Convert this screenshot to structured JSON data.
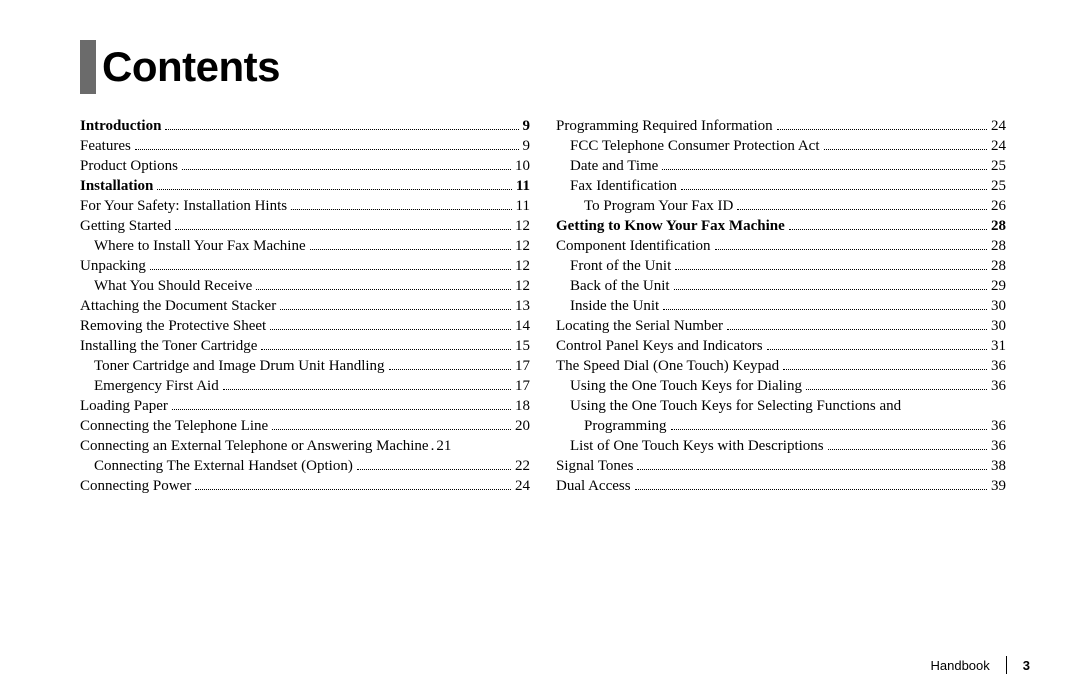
{
  "title": "Contents",
  "footer": {
    "label": "Handbook",
    "page": "3"
  },
  "columns": {
    "left": [
      {
        "label": "Introduction",
        "page": "9",
        "section": true,
        "indent": 0
      },
      {
        "label": "Features",
        "page": "9",
        "indent": 0
      },
      {
        "label": "Product Options",
        "page": "10",
        "indent": 0
      },
      {
        "label": "Installation",
        "page": "11",
        "section": true,
        "indent": 0
      },
      {
        "label": "For Your Safety: Installation Hints",
        "page": "11",
        "indent": 0
      },
      {
        "label": "Getting Started",
        "page": "12",
        "indent": 0
      },
      {
        "label": "Where to Install Your Fax Machine",
        "page": "12",
        "indent": 1
      },
      {
        "label": "Unpacking",
        "page": "12",
        "indent": 0
      },
      {
        "label": "What You Should Receive",
        "page": "12",
        "indent": 1
      },
      {
        "label": "Attaching the Document Stacker",
        "page": "13",
        "indent": 0
      },
      {
        "label": "Removing the Protective Sheet",
        "page": "14",
        "indent": 0
      },
      {
        "label": "Installing the Toner Cartridge",
        "page": "15",
        "indent": 0
      },
      {
        "label": "Toner Cartridge and Image Drum Unit Handling",
        "page": "17",
        "indent": 1
      },
      {
        "label": "Emergency First Aid",
        "page": "17",
        "indent": 1
      },
      {
        "label": "Loading Paper",
        "page": "18",
        "indent": 0
      },
      {
        "label": "Connecting the Telephone Line",
        "page": "20",
        "indent": 0
      },
      {
        "label": "Connecting an External Telephone or Answering Machine",
        "page": "21",
        "nodots": true,
        "indent": 0
      },
      {
        "label": "Connecting The External Handset (Option)",
        "page": "22",
        "indent": 1
      },
      {
        "label": "Connecting Power",
        "page": "24",
        "indent": 0
      }
    ],
    "right": [
      {
        "label": "Programming Required Information",
        "page": "24",
        "indent": 0
      },
      {
        "label": "FCC Telephone Consumer Protection Act",
        "page": "24",
        "indent": 1
      },
      {
        "label": "Date and Time",
        "page": "25",
        "indent": 1
      },
      {
        "label": "Fax Identification",
        "page": "25",
        "indent": 1
      },
      {
        "label": "To Program Your Fax ID",
        "page": "26",
        "indent": 2
      },
      {
        "label": "Getting to Know Your Fax Machine",
        "page": "28",
        "section": true,
        "indent": 0
      },
      {
        "label": "Component Identification",
        "page": "28",
        "indent": 0
      },
      {
        "label": "Front of the Unit",
        "page": "28",
        "indent": 1
      },
      {
        "label": "Back of the Unit",
        "page": "29",
        "indent": 1
      },
      {
        "label": "Inside the Unit",
        "page": "30",
        "indent": 1
      },
      {
        "label": "Locating the Serial Number",
        "page": "30",
        "indent": 0
      },
      {
        "label": "Control Panel Keys and Indicators",
        "page": "31",
        "indent": 0
      },
      {
        "label": "The Speed Dial (One Touch) Keypad",
        "page": "36",
        "indent": 0
      },
      {
        "label": "Using the One Touch Keys for Dialing",
        "page": "36",
        "indent": 1
      },
      {
        "label": "Using the One Touch Keys for Selecting Functions and Programming",
        "page": "36",
        "indent": 1,
        "wrap": true,
        "wrap_first": "Using the One Touch Keys for Selecting Functions and",
        "wrap_rest": "Programming"
      },
      {
        "label": "List of One Touch Keys with Descriptions",
        "page": "36",
        "indent": 1
      },
      {
        "label": "Signal Tones",
        "page": "38",
        "indent": 0
      },
      {
        "label": "Dual Access",
        "page": "39",
        "indent": 0
      }
    ]
  }
}
